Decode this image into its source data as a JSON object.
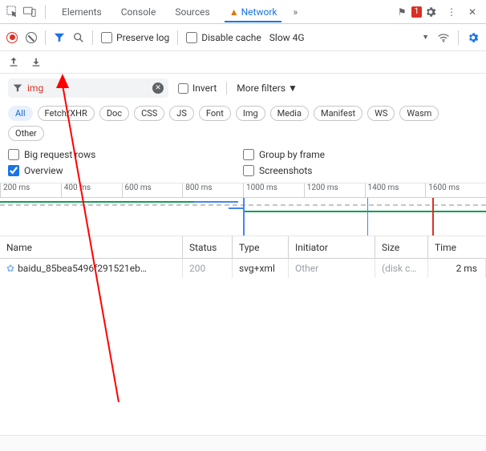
{
  "tabs": {
    "elements": "Elements",
    "console": "Console",
    "sources": "Sources",
    "network": "Network",
    "more": "»",
    "badge_count": "1"
  },
  "toolbar": {
    "preserve_log": "Preserve log",
    "disable_cache": "Disable cache",
    "throttle": "Slow 4G"
  },
  "filter": {
    "value": "img",
    "invert": "Invert",
    "more_filters": "More filters"
  },
  "chips": [
    "All",
    "Fetch/XHR",
    "Doc",
    "CSS",
    "JS",
    "Font",
    "Img",
    "Media",
    "Manifest",
    "WS",
    "Wasm",
    "Other"
  ],
  "chip_active_index": 0,
  "opts": {
    "big_rows": "Big request rows",
    "overview": "Overview",
    "group_frame": "Group by frame",
    "screenshots": "Screenshots"
  },
  "timeline_ticks": [
    "200 ms",
    "400 ms",
    "600 ms",
    "800 ms",
    "1000 ms",
    "1200 ms",
    "1400 ms",
    "1600 ms"
  ],
  "columns": {
    "name": "Name",
    "status": "Status",
    "type": "Type",
    "initiator": "Initiator",
    "size": "Size",
    "time": "Time"
  },
  "rows": [
    {
      "name": "baidu_85bea5496f291521eb…",
      "status": "200",
      "type": "svg+xml",
      "initiator": "Other",
      "size": "(disk c…",
      "time": "2 ms"
    }
  ],
  "colors": {
    "accent": "#1a73e8",
    "red_arrow": "#ff0000"
  }
}
